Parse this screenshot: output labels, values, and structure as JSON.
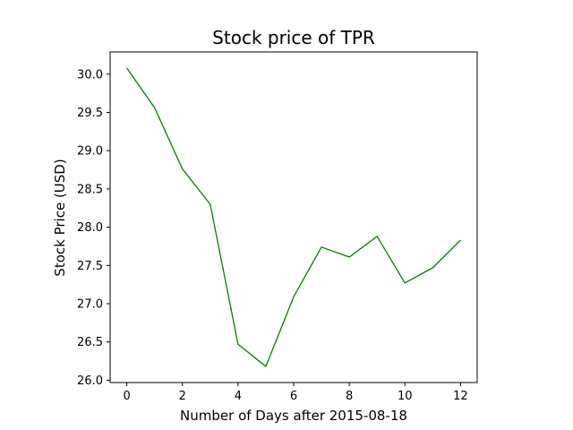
{
  "chart_data": {
    "type": "line",
    "title": "Stock price of TPR",
    "xlabel": "Number of Days after 2015-08-18",
    "ylabel": "Stock Price (USD)",
    "xlim": [
      -0.6,
      12.6
    ],
    "ylim": [
      25.97,
      30.29
    ],
    "xticks": [
      0,
      2,
      4,
      6,
      8,
      10,
      12
    ],
    "yticks": [
      26.0,
      26.5,
      27.0,
      27.5,
      28.0,
      28.5,
      29.0,
      29.5,
      30.0
    ],
    "grid": false,
    "series": [
      {
        "color": "#008000",
        "x": [
          0,
          1,
          2,
          3,
          4,
          5,
          6,
          7,
          8,
          9,
          10,
          11,
          12
        ],
        "values": [
          30.08,
          29.56,
          28.76,
          28.3,
          26.47,
          26.18,
          27.09,
          27.74,
          27.61,
          27.88,
          27.27,
          27.47,
          27.83
        ]
      }
    ]
  }
}
